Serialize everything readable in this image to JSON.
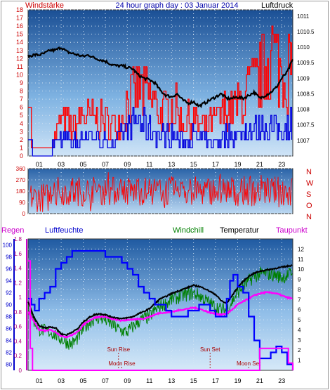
{
  "header": {
    "title": "24 hour graph day : 03 Januar 2014",
    "left_label": "Windstärke",
    "right_label": "Luftdruck"
  },
  "colors": {
    "panel_top": "#7fb6e6",
    "panel_bottom": "#1e5aa0",
    "frame": "#2a2a2a",
    "wind_speed": "#ff0000",
    "wind_speed_avg": "#0000dd",
    "pressure": "#000000",
    "wind_dir": "#ff0000",
    "humidity": "#0000ff",
    "windchill": "#008000",
    "temperature": "#000000",
    "dewpoint": "#ff00ff",
    "rain": "#ff00ff",
    "axis_red": "#cc0000",
    "axis_blue": "#0000cc"
  },
  "chart_data": [
    {
      "type": "line",
      "panel": "wind_pressure",
      "x_tick_labels": [
        "01",
        "03",
        "05",
        "07",
        "09",
        "11",
        "13",
        "15",
        "17",
        "19",
        "21",
        "23"
      ],
      "left_axis": {
        "label": "Windstärke",
        "ylim": [
          0,
          18
        ],
        "ticks": [
          0,
          1,
          2,
          3,
          4,
          5,
          6,
          7,
          8,
          9,
          10,
          11,
          12,
          13,
          14,
          15,
          16,
          17,
          18
        ]
      },
      "right_axis": {
        "label": "Luftdruck",
        "ylim": [
          1006.5,
          1011.2
        ],
        "ticks": [
          "1007",
          "1007.5",
          "1008",
          "1008.5",
          "1009",
          "1009.5",
          "1010",
          "1010.5",
          "1011"
        ]
      },
      "grid": true,
      "pressure_series": {
        "x": [
          0,
          0.5,
          1,
          1.5,
          2,
          2.5,
          3,
          3.5,
          4,
          4.5,
          5,
          5.5,
          6,
          6.5,
          7,
          7.5,
          8,
          8.5,
          9,
          9.5,
          10,
          10.5,
          11,
          11.5,
          12,
          12.5,
          13,
          13.5,
          14,
          14.5,
          15,
          15.5,
          16,
          16.5,
          17,
          17.5,
          18,
          18.5,
          19,
          19.5,
          20,
          20.5,
          21,
          21.5,
          22,
          22.5,
          23,
          23.5,
          24
        ],
        "values": [
          1009.7,
          1009.75,
          1009.75,
          1009.8,
          1009.9,
          1009.9,
          1010.0,
          1009.85,
          1009.8,
          1009.75,
          1009.7,
          1009.75,
          1009.65,
          1009.6,
          1009.55,
          1009.45,
          1009.4,
          1009.4,
          1009.35,
          1009.3,
          1009.1,
          1009.0,
          1008.95,
          1008.85,
          1008.6,
          1008.45,
          1008.4,
          1008.5,
          1008.3,
          1008.2,
          1008.25,
          1008.1,
          1008.2,
          1008.3,
          1008.4,
          1008.5,
          1008.35,
          1008.35,
          1008.4,
          1008.35,
          1008.45,
          1008.55,
          1008.35,
          1008.45,
          1008.55,
          1008.7,
          1009.0,
          1009.2,
          1009.6
        ]
      },
      "wind_speed_series": {
        "x": [
          0,
          1,
          2,
          3,
          4,
          5,
          6,
          7,
          8,
          9,
          10,
          11,
          12,
          13,
          14,
          15,
          16,
          17,
          18,
          19,
          20,
          21,
          22,
          23,
          24
        ],
        "max": [
          5,
          3,
          2,
          6,
          5,
          7,
          6,
          6,
          5,
          9,
          11,
          10,
          7,
          9,
          6,
          6,
          5,
          6,
          8,
          8,
          11,
          13,
          18,
          14,
          15
        ],
        "avg": [
          2,
          1,
          1,
          3,
          2,
          3,
          3,
          2,
          2,
          4,
          5,
          4,
          3,
          3,
          2,
          3,
          2,
          2,
          3,
          3,
          4,
          4,
          4,
          4,
          5
        ]
      }
    },
    {
      "type": "scatter",
      "panel": "wind_direction",
      "left_axis": {
        "ylim": [
          0,
          360
        ],
        "ticks": [
          0,
          90,
          180,
          270,
          360
        ]
      },
      "right_labels": [
        "N",
        "W",
        "S",
        "O",
        "N"
      ],
      "grid": true,
      "direction_band": {
        "x": [
          0,
          24
        ],
        "typical_range": [
          60,
          300
        ]
      }
    },
    {
      "type": "line",
      "panel": "temperature_humidity",
      "legend": [
        "Regen",
        "Luftfeuchte",
        "Windchill",
        "Temperatur",
        "Taupunkt"
      ],
      "rain_axis": {
        "label": "Regen",
        "ylim": [
          0,
          1.8
        ],
        "ticks": [
          "0",
          "0.2",
          "0.4",
          "0.6",
          "0.8",
          "1",
          "1.2",
          "1.4",
          "1.6",
          "1.8"
        ]
      },
      "humidity_axis": {
        "label": "Luftfeuchte",
        "ylim": [
          79,
          101
        ],
        "ticks": [
          "80",
          "82",
          "84",
          "86",
          "88",
          "90",
          "92",
          "94",
          "96",
          "98",
          "100"
        ]
      },
      "temperature_axis": {
        "label": "Temperatur",
        "ylim": [
          0,
          13
        ],
        "ticks": [
          "1",
          "2",
          "3",
          "4",
          "5",
          "6",
          "7",
          "8",
          "9",
          "10",
          "11",
          "12"
        ]
      },
      "grid": true,
      "x_tick_labels": [
        "01",
        "03",
        "05",
        "07",
        "09",
        "11",
        "13",
        "15",
        "17",
        "19",
        "21",
        "23"
      ],
      "temperature": {
        "x": [
          0,
          0.5,
          1,
          1.5,
          2,
          2.5,
          3,
          3.5,
          4,
          4.5,
          5,
          5.5,
          6,
          6.5,
          7,
          7.5,
          8,
          8.5,
          9,
          9.5,
          10,
          10.5,
          11,
          11.5,
          12,
          12.5,
          13,
          13.5,
          14,
          14.5,
          15,
          15.5,
          16,
          16.5,
          17,
          17.5,
          18,
          18.5,
          19,
          19.5,
          20,
          20.5,
          21,
          21.5,
          22,
          22.5,
          23,
          23.5,
          24
        ],
        "values": [
          6.8,
          5.3,
          4.4,
          4.2,
          4.3,
          4.2,
          3.6,
          3.5,
          3.8,
          4.1,
          4.8,
          5.2,
          5.5,
          5.6,
          5.5,
          5.3,
          5.2,
          5.1,
          5.2,
          5.3,
          5.6,
          5.8,
          6.1,
          6.6,
          7.1,
          7.3,
          7.6,
          7.8,
          8.0,
          8.2,
          8.4,
          8.3,
          8.1,
          7.8,
          7.5,
          6.9,
          6.6,
          7.4,
          8.2,
          8.8,
          9.3,
          9.6,
          9.8,
          9.9,
          10.0,
          10.1,
          10.2,
          10.3,
          10.4
        ]
      },
      "windchill": {
        "x": [
          0,
          0.5,
          1,
          1.5,
          2,
          2.5,
          3,
          3.5,
          4,
          4.5,
          5,
          5.5,
          6,
          6.5,
          7,
          7.5,
          8,
          8.5,
          9,
          9.5,
          10,
          10.5,
          11,
          11.5,
          12,
          12.5,
          13,
          13.5,
          14,
          14.5,
          15,
          15.5,
          16,
          16.5,
          17,
          17.5,
          18,
          18.5,
          19,
          19.5,
          20,
          20.5,
          21,
          21.5,
          22,
          22.5,
          23,
          23.5,
          24
        ],
        "values": [
          6.5,
          5.0,
          4.1,
          3.9,
          3.8,
          3.5,
          3.1,
          2.8,
          2.6,
          3.2,
          4.1,
          4.7,
          5.1,
          5.2,
          5.0,
          4.6,
          4.2,
          3.9,
          3.8,
          4.3,
          4.8,
          5.1,
          5.3,
          5.9,
          6.4,
          6.6,
          7.0,
          7.2,
          7.4,
          7.5,
          7.6,
          7.4,
          7.0,
          6.6,
          6.3,
          6.0,
          6.0,
          6.8,
          7.7,
          8.3,
          8.8,
          9.3,
          9.5,
          9.6,
          9.5,
          9.4,
          9.2,
          9.4,
          9.7
        ]
      },
      "dewpoint": {
        "x": [
          0,
          0.5,
          1,
          1.5,
          2,
          2.5,
          3,
          3.5,
          4,
          4.5,
          5,
          5.5,
          6,
          6.5,
          7,
          7.5,
          8,
          8.5,
          9,
          9.5,
          10,
          10.5,
          11,
          11.5,
          12,
          12.5,
          13,
          13.5,
          14,
          14.5,
          15,
          15.5,
          16,
          16.5,
          17,
          17.5,
          18,
          18.5,
          19,
          19.5,
          20,
          20.5,
          21,
          21.5,
          22,
          22.5,
          23,
          23.5,
          24
        ],
        "values": [
          5.8,
          4.9,
          4.0,
          3.9,
          4.0,
          3.8,
          3.4,
          3.3,
          3.5,
          3.8,
          4.5,
          4.9,
          5.2,
          5.3,
          5.3,
          5.1,
          5.0,
          4.9,
          5.0,
          5.0,
          5.1,
          5.1,
          5.3,
          5.5,
          5.7,
          5.7,
          5.8,
          5.9,
          6.0,
          6.1,
          6.2,
          6.1,
          5.9,
          5.7,
          5.6,
          5.5,
          5.6,
          6.0,
          6.5,
          6.8,
          7.1,
          7.4,
          7.6,
          7.7,
          7.7,
          7.6,
          7.4,
          7.2,
          7.1
        ]
      },
      "humidity": {
        "x": [
          0,
          0.3,
          0.6,
          1,
          1.5,
          2,
          2.5,
          3,
          3.5,
          4,
          4.5,
          5,
          5.5,
          6,
          6.5,
          7,
          7.5,
          8,
          8.5,
          9,
          9.5,
          10,
          10.5,
          11,
          11.5,
          12,
          12.5,
          13,
          13.5,
          14,
          14.5,
          15,
          15.5,
          16,
          16.5,
          17,
          17.5,
          18,
          18.3,
          18.6,
          19,
          19.5,
          20,
          20.5,
          21,
          21.5,
          22,
          22.5,
          23,
          23.5,
          24
        ],
        "values": [
          91,
          90,
          89,
          91,
          92,
          93,
          96,
          97,
          98,
          99,
          99,
          99,
          99,
          99,
          99,
          98,
          98,
          98,
          97,
          96,
          95,
          93,
          92,
          91,
          90,
          90,
          89,
          88,
          88,
          88,
          89,
          89,
          90,
          90,
          89,
          88,
          88,
          91,
          94,
          95,
          93,
          92,
          88,
          84,
          81,
          81,
          82,
          83,
          82,
          80,
          79
        ]
      },
      "rain": {
        "x": [
          0,
          0.1,
          0.2,
          0.4,
          20.9,
          21.0,
          22.0,
          22.5,
          23.0,
          23.5,
          23.6,
          24
        ],
        "values": [
          1.5,
          1.5,
          0.3,
          0,
          0,
          0.3,
          0.3,
          0.3,
          0.3,
          0.3,
          0.1,
          0
        ]
      },
      "annotations": [
        {
          "label": "Sun Rise",
          "x": 8.2
        },
        {
          "label": "Moon Rise",
          "x": 8.5
        },
        {
          "label": "Sun Set",
          "x": 16.5
        },
        {
          "label": "Moon Set",
          "x": 20.0
        }
      ]
    }
  ]
}
